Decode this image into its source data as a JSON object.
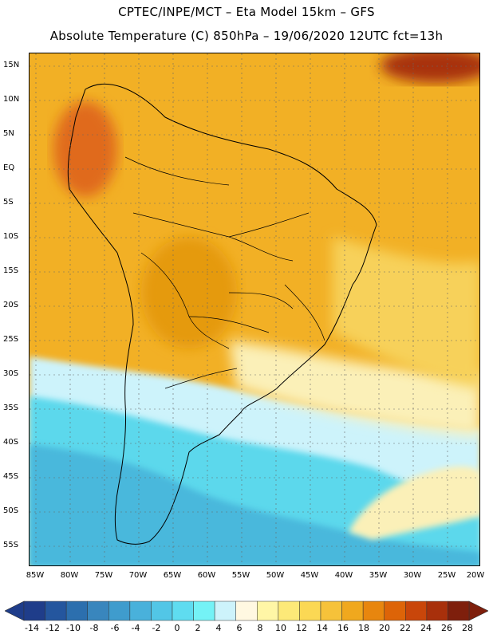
{
  "header": {
    "title_line1": "CPTEC/INPE/MCT –  Eta Model 15km – GFS",
    "title_line2": "Absolute Temperature (C) 850hPa – 19/06/2020 12UTC fct=13h"
  },
  "map": {
    "region": "South America",
    "lat_labels": [
      "15N",
      "10N",
      "5N",
      "EQ",
      "5S",
      "10S",
      "15S",
      "20S",
      "25S",
      "30S",
      "35S",
      "40S",
      "45S",
      "50S",
      "55S"
    ],
    "lon_labels": [
      "85W",
      "80W",
      "75W",
      "70W",
      "65W",
      "60W",
      "55W",
      "50W",
      "45W",
      "40W",
      "35W",
      "30W",
      "25W",
      "20W"
    ]
  },
  "colorbar": {
    "labels": [
      "-14",
      "-12",
      "-10",
      "-8",
      "-6",
      "-4",
      "-2",
      "0",
      "2",
      "4",
      "6",
      "8",
      "10",
      "12",
      "14",
      "16",
      "18",
      "20",
      "22",
      "24",
      "26",
      "28"
    ],
    "colors": [
      "#1f3d8a",
      "#24569e",
      "#2c6fae",
      "#3986bd",
      "#3f9ccd",
      "#49b1db",
      "#52c6e6",
      "#5fdcf0",
      "#74f2f6",
      "#cdf3fb",
      "#fff8e1",
      "#fff6a6",
      "#fde978",
      "#fbd854",
      "#f6c23a",
      "#f0a81e",
      "#e8860e",
      "#dd6408",
      "#c9460a",
      "#a8300b",
      "#7e1f0c"
    ]
  },
  "colors": {
    "hot": "#e59a10",
    "warm": "#f2b025",
    "mild": "#f7d15a",
    "pale": "#fbf0b8",
    "cool": "#cdf3fb",
    "cyan": "#5cd8ec",
    "blue": "#48b8dc",
    "deep": "#e06a1a"
  }
}
